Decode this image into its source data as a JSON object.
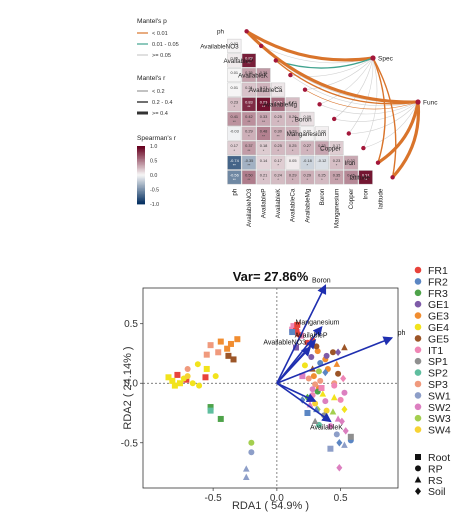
{
  "chart_data": [
    {
      "type": "heatmap",
      "variables": [
        "ph",
        "AvailableNO3",
        "AvailableP",
        "AvailableK",
        "AvailableCa",
        "AvailableMg",
        "Boron",
        "Manganesium",
        "Copper",
        "Iron",
        "latitude"
      ],
      "matrix_lower_triangle": [
        [],
        [
          0.02
        ],
        [
          0.05,
          0.88
        ],
        [
          0.01,
          0.35,
          0.38
        ],
        [
          0.01,
          0.21,
          0.27,
          0.07
        ],
        [
          0.23,
          0.83,
          0.93,
          0.57,
          0.23
        ],
        [
          0.41,
          0.42,
          0.33,
          0.25,
          0.26,
          0.09
        ],
        [
          -0.03,
          0.29,
          0.48,
          0.3,
          0.28,
          0.02,
          0.03
        ],
        [
          0.17,
          0.37,
          0.18,
          0.25,
          0.25,
          0.27,
          0.33,
          0.17
        ],
        [
          -0.74,
          -0.35,
          0.14,
          0.17,
          0.05,
          -0.18,
          -0.12,
          0.23,
          0.32
        ],
        [
          -0.56,
          0.5,
          0.21,
          0.24,
          0.29,
          0.29,
          0.25,
          0.35,
          0.45,
          0.91
        ]
      ],
      "colorbar": {
        "title": "Spearman's r",
        "ticks": [
          "1.0",
          "0.5",
          "0.0",
          "-0.5",
          "-1.0"
        ]
      },
      "mantel_p_legend": {
        "title": "Mantel's p",
        "items": [
          {
            "label": "< 0.01",
            "color": "#d9742b"
          },
          {
            "label": "0.01 - 0.05",
            "color": "#41a38f"
          },
          {
            "label": ">= 0.05",
            "color": "#cccccc"
          }
        ]
      },
      "mantel_r_legend": {
        "title": "Mantel's r",
        "items": [
          "< 0.2",
          "0.2 - 0.4",
          ">= 0.4"
        ]
      },
      "groups": [
        "Spec",
        "Func"
      ],
      "links": [
        {
          "from": "Spec",
          "to": "ph",
          "p": "< 0.01",
          "r": ">= 0.4"
        },
        {
          "from": "Spec",
          "to": "AvailableNO3",
          "p": ">= 0.05",
          "r": "< 0.2"
        },
        {
          "from": "Spec",
          "to": "AvailableP",
          "p": "0.01 - 0.05",
          "r": "0.2 - 0.4"
        },
        {
          "from": "Spec",
          "to": "AvailableK",
          "p": ">= 0.05",
          "r": "< 0.2"
        },
        {
          "from": "Spec",
          "to": "AvailableCa",
          "p": ">= 0.05",
          "r": "< 0.2"
        },
        {
          "from": "Spec",
          "to": "AvailableMg",
          "p": ">= 0.05",
          "r": "< 0.2"
        },
        {
          "from": "Spec",
          "to": "Boron",
          "p": ">= 0.05",
          "r": "< 0.2"
        },
        {
          "from": "Spec",
          "to": "Manganesium",
          "p": ">= 0.05",
          "r": "< 0.2"
        },
        {
          "from": "Spec",
          "to": "Copper",
          "p": ">= 0.05",
          "r": "< 0.2"
        },
        {
          "from": "Spec",
          "to": "Iron",
          "p": "< 0.01",
          "r": "0.2 - 0.4"
        },
        {
          "from": "Spec",
          "to": "latitude",
          "p": "< 0.01",
          "r": "0.2 - 0.4"
        },
        {
          "from": "Func",
          "to": "ph",
          "p": "< 0.01",
          "r": ">= 0.4"
        },
        {
          "from": "Func",
          "to": "AvailableNO3",
          "p": ">= 0.05",
          "r": "< 0.2"
        },
        {
          "from": "Func",
          "to": "AvailableP",
          "p": "< 0.01",
          "r": "0.2 - 0.4"
        },
        {
          "from": "Func",
          "to": "AvailableK",
          "p": ">= 0.05",
          "r": "< 0.2"
        },
        {
          "from": "Func",
          "to": "AvailableCa",
          "p": "< 0.01",
          "r": "< 0.2"
        },
        {
          "from": "Func",
          "to": "AvailableMg",
          "p": ">= 0.05",
          "r": "< 0.2"
        },
        {
          "from": "Func",
          "to": "Boron",
          "p": ">= 0.05",
          "r": "< 0.2"
        },
        {
          "from": "Func",
          "to": "Manganesium",
          "p": ">= 0.05",
          "r": "< 0.2"
        },
        {
          "from": "Func",
          "to": "Copper",
          "p": ">= 0.05",
          "r": "< 0.2"
        },
        {
          "from": "Func",
          "to": "Iron",
          "p": "< 0.01",
          "r": ">= 0.4"
        },
        {
          "from": "Func",
          "to": "latitude",
          "p": "< 0.01",
          "r": ">= 0.4"
        }
      ]
    },
    {
      "type": "scatter",
      "title": "Var= 27.86%",
      "xlabel": "RDA1 ( 54.9% )",
      "ylabel": "RDA2 ( 24.14% )",
      "xlim": [
        -1.05,
        0.95
      ],
      "ylim": [
        -0.88,
        0.8
      ],
      "xticks": [
        -0.5,
        0.0,
        0.5
      ],
      "yticks": [
        0.5,
        0.0,
        -0.5
      ],
      "sites": [
        "FR1",
        "FR2",
        "FR3",
        "GE1",
        "GE3",
        "GE4",
        "GE5",
        "IT1",
        "SP1",
        "SP2",
        "SP3",
        "SW1",
        "SW2",
        "SW3",
        "SW4"
      ],
      "site_colors": [
        "#e8433b",
        "#5b86c3",
        "#4ea34a",
        "#7e5ba8",
        "#f18d30",
        "#f2e31c",
        "#9c5527",
        "#ef86b5",
        "#8f8f8f",
        "#5fbe9f",
        "#f09a7d",
        "#8d9ec8",
        "#dc7fc0",
        "#a4cf4f",
        "#f7d334"
      ],
      "shapes_legend": [
        {
          "label": "Root",
          "shape": "square"
        },
        {
          "label": "RP",
          "shape": "circle"
        },
        {
          "label": "RS",
          "shape": "triangle"
        },
        {
          "label": "Soil",
          "shape": "diamond"
        }
      ],
      "vectors": [
        {
          "name": "Boron",
          "x": 0.38,
          "y": 0.82
        },
        {
          "name": "Manganesium",
          "x": 0.35,
          "y": 0.47
        },
        {
          "name": "AvailableP",
          "x": 0.3,
          "y": 0.36
        },
        {
          "name": "AvailableNO3",
          "x": 0.26,
          "y": 0.3
        },
        {
          "name": "ph",
          "x": 0.9,
          "y": 0.38
        },
        {
          "name": "AvailableK",
          "x": 0.42,
          "y": -0.32
        },
        {
          "name": "",
          "x": 0.3,
          "y": -0.15
        }
      ],
      "points": [
        {
          "site": "IT1",
          "shape": "square",
          "x": 0.13,
          "y": 0.48
        },
        {
          "site": "IT1",
          "shape": "square",
          "x": 0.12,
          "y": 0.45
        },
        {
          "site": "IT1",
          "shape": "square",
          "x": 0.16,
          "y": 0.43
        },
        {
          "site": "IT1",
          "shape": "square",
          "x": 0.19,
          "y": 0.4
        },
        {
          "site": "FR1",
          "shape": "square",
          "x": 0.16,
          "y": 0.49
        },
        {
          "site": "FR1",
          "shape": "square",
          "x": 0.15,
          "y": 0.44
        },
        {
          "site": "FR1",
          "shape": "circle",
          "x": 0.17,
          "y": 0.41
        },
        {
          "site": "FR1",
          "shape": "circle",
          "x": 0.24,
          "y": 0.34
        },
        {
          "site": "FR1",
          "shape": "circle",
          "x": 0.28,
          "y": 0.36
        },
        {
          "site": "FR1",
          "shape": "square",
          "x": -0.78,
          "y": 0.07
        },
        {
          "site": "FR1",
          "shape": "square",
          "x": -0.56,
          "y": 0.05
        },
        {
          "site": "FR1",
          "shape": "square",
          "x": -0.71,
          "y": 0.03
        },
        {
          "site": "GE3",
          "shape": "square",
          "x": -0.44,
          "y": 0.35
        },
        {
          "site": "GE3",
          "shape": "square",
          "x": -0.36,
          "y": 0.33
        },
        {
          "site": "GE3",
          "shape": "square",
          "x": -0.39,
          "y": 0.29
        },
        {
          "site": "GE3",
          "shape": "square",
          "x": -0.31,
          "y": 0.37
        },
        {
          "site": "GE3",
          "shape": "circle",
          "x": 0.32,
          "y": 0.27
        },
        {
          "site": "GE3",
          "shape": "circle",
          "x": 0.38,
          "y": 0.2
        },
        {
          "site": "GE3",
          "shape": "circle",
          "x": 0.4,
          "y": 0.12
        },
        {
          "site": "GE3",
          "shape": "circle",
          "x": 0.29,
          "y": 0.06
        },
        {
          "site": "GE3",
          "shape": "circle",
          "x": 0.33,
          "y": -0.04
        },
        {
          "site": "GE3",
          "shape": "triangle",
          "x": 0.47,
          "y": 0.16
        },
        {
          "site": "GE5",
          "shape": "square",
          "x": -0.38,
          "y": 0.23
        },
        {
          "site": "GE5",
          "shape": "square",
          "x": -0.34,
          "y": 0.2
        },
        {
          "site": "GE5",
          "shape": "circle",
          "x": 0.31,
          "y": 0.31
        },
        {
          "site": "GE5",
          "shape": "circle",
          "x": 0.44,
          "y": 0.26
        },
        {
          "site": "GE5",
          "shape": "triangle",
          "x": 0.53,
          "y": 0.3
        },
        {
          "site": "GE5",
          "shape": "triangle",
          "x": 0.28,
          "y": 0.12
        },
        {
          "site": "GE5",
          "shape": "circle",
          "x": 0.48,
          "y": 0.08
        },
        {
          "site": "SP3",
          "shape": "square",
          "x": -0.52,
          "y": 0.32
        },
        {
          "site": "SP3",
          "shape": "square",
          "x": -0.46,
          "y": 0.26
        },
        {
          "site": "SP3",
          "shape": "square",
          "x": -0.55,
          "y": 0.24
        },
        {
          "site": "SP3",
          "shape": "circle",
          "x": -0.7,
          "y": 0.12
        },
        {
          "site": "SP3",
          "shape": "circle",
          "x": 0.25,
          "y": 0.04
        },
        {
          "site": "SP3",
          "shape": "circle",
          "x": 0.34,
          "y": 0.02
        },
        {
          "site": "SP3",
          "shape": "circle",
          "x": 0.3,
          "y": -0.01
        },
        {
          "site": "SP3",
          "shape": "circle",
          "x": 0.45,
          "y": 0.0
        },
        {
          "site": "GE4",
          "shape": "square",
          "x": -0.85,
          "y": 0.05
        },
        {
          "site": "GE4",
          "shape": "square",
          "x": -0.82,
          "y": 0.02
        },
        {
          "site": "GE4",
          "shape": "square",
          "x": -0.8,
          "y": -0.02
        },
        {
          "site": "GE4",
          "shape": "square",
          "x": -0.76,
          "y": 0.0
        },
        {
          "site": "GE4",
          "shape": "circle",
          "x": -0.73,
          "y": 0.04
        },
        {
          "site": "GE4",
          "shape": "circle",
          "x": -0.66,
          "y": 0.0
        },
        {
          "site": "GE4",
          "shape": "circle",
          "x": -0.62,
          "y": 0.16
        },
        {
          "site": "GE4",
          "shape": "circle",
          "x": -0.61,
          "y": -0.02
        },
        {
          "site": "GE4",
          "shape": "circle",
          "x": -0.48,
          "y": 0.06
        },
        {
          "site": "GE4",
          "shape": "square",
          "x": -0.55,
          "y": 0.12
        },
        {
          "site": "GE4",
          "shape": "circle",
          "x": 0.22,
          "y": 0.15
        },
        {
          "site": "GE4",
          "shape": "triangle",
          "x": 0.36,
          "y": -0.09
        },
        {
          "site": "GE4",
          "shape": "triangle",
          "x": 0.45,
          "y": -0.12
        },
        {
          "site": "GE4",
          "shape": "diamond",
          "x": 0.53,
          "y": -0.22
        },
        {
          "site": "SW4",
          "shape": "circle",
          "x": -0.7,
          "y": 0.06
        },
        {
          "site": "SW4",
          "shape": "circle",
          "x": 0.3,
          "y": -0.17
        },
        {
          "site": "SW4",
          "shape": "circle",
          "x": 0.39,
          "y": -0.23
        },
        {
          "site": "SW2",
          "shape": "square",
          "x": 0.2,
          "y": 0.06
        },
        {
          "site": "SW2",
          "shape": "circle",
          "x": 0.28,
          "y": -0.05
        },
        {
          "site": "SW2",
          "shape": "triangle",
          "x": 0.26,
          "y": -0.18
        },
        {
          "site": "SW2",
          "shape": "triangle",
          "x": 0.48,
          "y": -0.3
        },
        {
          "site": "SW2",
          "shape": "diamond",
          "x": 0.51,
          "y": -0.32
        },
        {
          "site": "SW2",
          "shape": "circle",
          "x": 0.42,
          "y": -0.36
        },
        {
          "site": "SW2",
          "shape": "diamond",
          "x": 0.54,
          "y": -0.4
        },
        {
          "site": "SW2",
          "shape": "circle",
          "x": 0.53,
          "y": -0.08
        },
        {
          "site": "SW2",
          "shape": "diamond",
          "x": 0.49,
          "y": -0.71
        },
        {
          "site": "SW2",
          "shape": "circle",
          "x": 0.38,
          "y": -0.15
        },
        {
          "site": "SW3",
          "shape": "circle",
          "x": 0.33,
          "y": 0.1
        },
        {
          "site": "SW3",
          "shape": "triangle",
          "x": 0.44,
          "y": -0.24
        },
        {
          "site": "SW3",
          "shape": "triangle",
          "x": 0.38,
          "y": -0.29
        },
        {
          "site": "SW3",
          "shape": "circle",
          "x": -0.2,
          "y": -0.5
        },
        {
          "site": "SW3",
          "shape": "diamond",
          "x": 0.32,
          "y": -0.22
        },
        {
          "site": "SW1",
          "shape": "circle",
          "x": 0.47,
          "y": -0.43
        },
        {
          "site": "SW1",
          "shape": "triangle",
          "x": 0.53,
          "y": -0.52
        },
        {
          "site": "SW1",
          "shape": "square",
          "x": 0.42,
          "y": -0.55
        },
        {
          "site": "SW1",
          "shape": "circle",
          "x": -0.2,
          "y": -0.58
        },
        {
          "site": "SW1",
          "shape": "triangle",
          "x": -0.24,
          "y": -0.72
        },
        {
          "site": "SW1",
          "shape": "triangle",
          "x": -0.24,
          "y": -0.79
        },
        {
          "site": "FR2",
          "shape": "square",
          "x": 0.12,
          "y": 0.43
        },
        {
          "site": "FR2",
          "shape": "circle",
          "x": 0.34,
          "y": 0.17
        },
        {
          "site": "FR2",
          "shape": "diamond",
          "x": 0.38,
          "y": 0.09
        },
        {
          "site": "FR2",
          "shape": "diamond",
          "x": 0.2,
          "y": -0.14
        },
        {
          "site": "FR2",
          "shape": "triangle",
          "x": 0.31,
          "y": -0.22
        },
        {
          "site": "FR2",
          "shape": "square",
          "x": 0.24,
          "y": -0.25
        },
        {
          "site": "FR2",
          "shape": "diamond",
          "x": 0.49,
          "y": -0.5
        },
        {
          "site": "FR2",
          "shape": "circle",
          "x": 0.58,
          "y": -0.48
        },
        {
          "site": "FR3",
          "shape": "square",
          "x": -0.52,
          "y": -0.2
        },
        {
          "site": "FR3",
          "shape": "square",
          "x": -0.44,
          "y": -0.3
        },
        {
          "site": "FR3",
          "shape": "circle",
          "x": 0.32,
          "y": -0.07
        },
        {
          "site": "FR3",
          "shape": "diamond",
          "x": 0.24,
          "y": -0.12
        },
        {
          "site": "GE1",
          "shape": "circle",
          "x": 0.27,
          "y": 0.22
        },
        {
          "site": "GE1",
          "shape": "circle",
          "x": 0.39,
          "y": 0.23
        },
        {
          "site": "GE1",
          "shape": "square",
          "x": 0.15,
          "y": 0.3
        },
        {
          "site": "GE1",
          "shape": "diamond",
          "x": 0.48,
          "y": 0.26
        },
        {
          "site": "SP2",
          "shape": "square",
          "x": -0.52,
          "y": -0.23
        },
        {
          "site": "SP2",
          "shape": "circle",
          "x": 0.33,
          "y": -0.35
        },
        {
          "site": "SP1",
          "shape": "triangle",
          "x": 0.3,
          "y": -0.32
        },
        {
          "site": "SP1",
          "shape": "square",
          "x": 0.58,
          "y": -0.45
        },
        {
          "site": "SP1",
          "shape": "circle",
          "x": 0.37,
          "y": -0.27
        },
        {
          "site": "IT1",
          "shape": "circle",
          "x": 0.45,
          "y": -0.02
        },
        {
          "site": "IT1",
          "shape": "square",
          "x": 0.35,
          "y": -0.04
        },
        {
          "site": "IT1",
          "shape": "circle",
          "x": 0.28,
          "y": -0.1
        },
        {
          "site": "IT1",
          "shape": "diamond",
          "x": 0.52,
          "y": 0.04
        },
        {
          "site": "IT1",
          "shape": "circle",
          "x": 0.5,
          "y": -0.14
        }
      ]
    }
  ]
}
